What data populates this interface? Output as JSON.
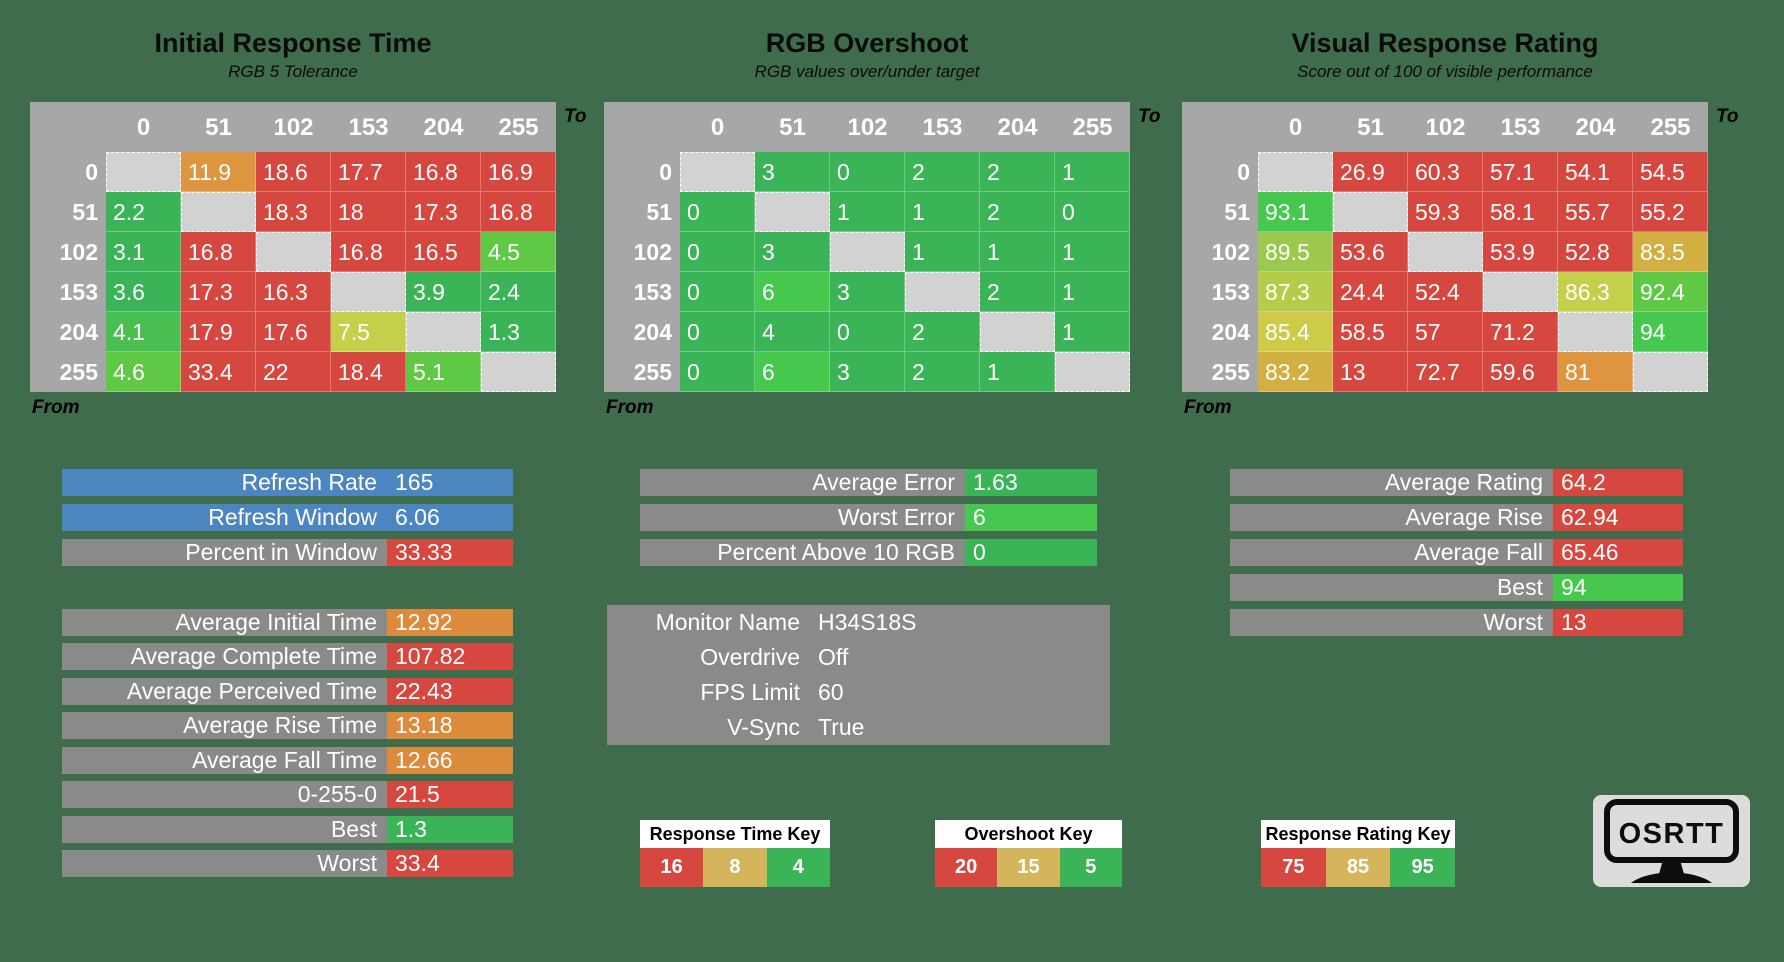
{
  "labels": {
    "from": "From",
    "to": "To"
  },
  "colors": {
    "bg": "#3f6c4c",
    "red": "#d5473f",
    "g1": "#3bb457",
    "g2": "#46c84e",
    "g3": "#5fc946",
    "g4": "#49bf51",
    "y1": "#9cc84d",
    "y2": "#b5cc4b",
    "y3": "#c4cf4a",
    "y4": "#cecb48",
    "gold": "#d1af41",
    "goldKey": "#d4b55c",
    "o1": "#de953f",
    "o2": "#dc8a3c",
    "blue": "#4c86c1",
    "grayLabel": "#8a8a8a",
    "grayHeader": "#a7a7a7",
    "diag": "#d2d2d2"
  },
  "tables": [
    {
      "title": "Initial Response Time",
      "subtitle": "RGB 5 Tolerance",
      "columns": [
        "0",
        "51",
        "102",
        "153",
        "204",
        "255"
      ],
      "rows": [
        {
          "header": "0",
          "cells": [
            {
              "v": "",
              "k": "diag"
            },
            {
              "v": "11.9",
              "k": "o1"
            },
            {
              "v": "18.6",
              "k": "red"
            },
            {
              "v": "17.7",
              "k": "red"
            },
            {
              "v": "16.8",
              "k": "red"
            },
            {
              "v": "16.9",
              "k": "red"
            }
          ]
        },
        {
          "header": "51",
          "cells": [
            {
              "v": "2.2",
              "k": "g1"
            },
            {
              "v": "",
              "k": "diag"
            },
            {
              "v": "18.3",
              "k": "red"
            },
            {
              "v": "18",
              "k": "red"
            },
            {
              "v": "17.3",
              "k": "red"
            },
            {
              "v": "16.8",
              "k": "red"
            }
          ]
        },
        {
          "header": "102",
          "cells": [
            {
              "v": "3.1",
              "k": "g1"
            },
            {
              "v": "16.8",
              "k": "red"
            },
            {
              "v": "",
              "k": "diag"
            },
            {
              "v": "16.8",
              "k": "red"
            },
            {
              "v": "16.5",
              "k": "red"
            },
            {
              "v": "4.5",
              "k": "g3"
            }
          ]
        },
        {
          "header": "153",
          "cells": [
            {
              "v": "3.6",
              "k": "g1"
            },
            {
              "v": "17.3",
              "k": "red"
            },
            {
              "v": "16.3",
              "k": "red"
            },
            {
              "v": "",
              "k": "diag"
            },
            {
              "v": "3.9",
              "k": "g1"
            },
            {
              "v": "2.4",
              "k": "g1"
            }
          ]
        },
        {
          "header": "204",
          "cells": [
            {
              "v": "4.1",
              "k": "g4"
            },
            {
              "v": "17.9",
              "k": "red"
            },
            {
              "v": "17.6",
              "k": "red"
            },
            {
              "v": "7.5",
              "k": "y3"
            },
            {
              "v": "",
              "k": "diag"
            },
            {
              "v": "1.3",
              "k": "g1"
            }
          ]
        },
        {
          "header": "255",
          "cells": [
            {
              "v": "4.6",
              "k": "g3"
            },
            {
              "v": "33.4",
              "k": "red"
            },
            {
              "v": "22",
              "k": "red"
            },
            {
              "v": "18.4",
              "k": "red"
            },
            {
              "v": "5.1",
              "k": "g3"
            },
            {
              "v": "",
              "k": "diag"
            }
          ]
        }
      ]
    },
    {
      "title": "RGB Overshoot",
      "subtitle": "RGB values over/under target",
      "columns": [
        "0",
        "51",
        "102",
        "153",
        "204",
        "255"
      ],
      "rows": [
        {
          "header": "0",
          "cells": [
            {
              "v": "",
              "k": "diag"
            },
            {
              "v": "3",
              "k": "g1"
            },
            {
              "v": "0",
              "k": "g1"
            },
            {
              "v": "2",
              "k": "g1"
            },
            {
              "v": "2",
              "k": "g1"
            },
            {
              "v": "1",
              "k": "g1"
            }
          ]
        },
        {
          "header": "51",
          "cells": [
            {
              "v": "0",
              "k": "g1"
            },
            {
              "v": "",
              "k": "diag"
            },
            {
              "v": "1",
              "k": "g1"
            },
            {
              "v": "1",
              "k": "g1"
            },
            {
              "v": "2",
              "k": "g1"
            },
            {
              "v": "0",
              "k": "g1"
            }
          ]
        },
        {
          "header": "102",
          "cells": [
            {
              "v": "0",
              "k": "g1"
            },
            {
              "v": "3",
              "k": "g1"
            },
            {
              "v": "",
              "k": "diag"
            },
            {
              "v": "1",
              "k": "g1"
            },
            {
              "v": "1",
              "k": "g1"
            },
            {
              "v": "1",
              "k": "g1"
            }
          ]
        },
        {
          "header": "153",
          "cells": [
            {
              "v": "0",
              "k": "g1"
            },
            {
              "v": "6",
              "k": "g2"
            },
            {
              "v": "3",
              "k": "g1"
            },
            {
              "v": "",
              "k": "diag"
            },
            {
              "v": "2",
              "k": "g1"
            },
            {
              "v": "1",
              "k": "g1"
            }
          ]
        },
        {
          "header": "204",
          "cells": [
            {
              "v": "0",
              "k": "g1"
            },
            {
              "v": "4",
              "k": "g1"
            },
            {
              "v": "0",
              "k": "g1"
            },
            {
              "v": "2",
              "k": "g1"
            },
            {
              "v": "",
              "k": "diag"
            },
            {
              "v": "1",
              "k": "g1"
            }
          ]
        },
        {
          "header": "255",
          "cells": [
            {
              "v": "0",
              "k": "g1"
            },
            {
              "v": "6",
              "k": "g2"
            },
            {
              "v": "3",
              "k": "g1"
            },
            {
              "v": "2",
              "k": "g1"
            },
            {
              "v": "1",
              "k": "g1"
            },
            {
              "v": "",
              "k": "diag"
            }
          ]
        }
      ]
    },
    {
      "title": "Visual Response Rating",
      "subtitle": "Score out of 100 of visible performance",
      "columns": [
        "0",
        "51",
        "102",
        "153",
        "204",
        "255"
      ],
      "rows": [
        {
          "header": "0",
          "cells": [
            {
              "v": "",
              "k": "diag"
            },
            {
              "v": "26.9",
              "k": "red"
            },
            {
              "v": "60.3",
              "k": "red"
            },
            {
              "v": "57.1",
              "k": "red"
            },
            {
              "v": "54.1",
              "k": "red"
            },
            {
              "v": "54.5",
              "k": "red"
            }
          ]
        },
        {
          "header": "51",
          "cells": [
            {
              "v": "93.1",
              "k": "g2"
            },
            {
              "v": "",
              "k": "diag"
            },
            {
              "v": "59.3",
              "k": "red"
            },
            {
              "v": "58.1",
              "k": "red"
            },
            {
              "v": "55.7",
              "k": "red"
            },
            {
              "v": "55.2",
              "k": "red"
            }
          ]
        },
        {
          "header": "102",
          "cells": [
            {
              "v": "89.5",
              "k": "y1"
            },
            {
              "v": "53.6",
              "k": "red"
            },
            {
              "v": "",
              "k": "diag"
            },
            {
              "v": "53.9",
              "k": "red"
            },
            {
              "v": "52.8",
              "k": "red"
            },
            {
              "v": "83.5",
              "k": "gold"
            }
          ]
        },
        {
          "header": "153",
          "cells": [
            {
              "v": "87.3",
              "k": "y2"
            },
            {
              "v": "24.4",
              "k": "red"
            },
            {
              "v": "52.4",
              "k": "red"
            },
            {
              "v": "",
              "k": "diag"
            },
            {
              "v": "86.3",
              "k": "y3"
            },
            {
              "v": "92.4",
              "k": "g3"
            }
          ]
        },
        {
          "header": "204",
          "cells": [
            {
              "v": "85.4",
              "k": "y4"
            },
            {
              "v": "58.5",
              "k": "red"
            },
            {
              "v": "57",
              "k": "red"
            },
            {
              "v": "71.2",
              "k": "red"
            },
            {
              "v": "",
              "k": "diag"
            },
            {
              "v": "94",
              "k": "g2"
            }
          ]
        },
        {
          "header": "255",
          "cells": [
            {
              "v": "83.2",
              "k": "gold"
            },
            {
              "v": "13",
              "k": "red"
            },
            {
              "v": "72.7",
              "k": "red"
            },
            {
              "v": "59.6",
              "k": "red"
            },
            {
              "v": "81",
              "k": "o1"
            },
            {
              "v": "",
              "k": "diag"
            }
          ]
        }
      ]
    }
  ],
  "panels": {
    "refresh": {
      "rows": [
        {
          "label": "Refresh Rate",
          "value": "165",
          "k": "blue"
        },
        {
          "label": "Refresh Window",
          "value": "6.06",
          "k": "blue"
        },
        {
          "label": "Percent in Window",
          "value": "33.33",
          "k": "red"
        }
      ]
    },
    "times": {
      "rows": [
        {
          "label": "Average Initial Time",
          "value": "12.92",
          "k": "o2"
        },
        {
          "label": "Average Complete Time",
          "value": "107.82",
          "k": "red"
        },
        {
          "label": "Average Perceived Time",
          "value": "22.43",
          "k": "red"
        },
        {
          "label": "Average Rise Time",
          "value": "13.18",
          "k": "o2"
        },
        {
          "label": "Average Fall Time",
          "value": "12.66",
          "k": "o2"
        },
        {
          "label": "0-255-0",
          "value": "21.5",
          "k": "red"
        },
        {
          "label": "Best",
          "value": "1.3",
          "k": "g1"
        },
        {
          "label": "Worst",
          "value": "33.4",
          "k": "red"
        }
      ]
    },
    "error": {
      "rows": [
        {
          "label": "Average Error",
          "value": "1.63",
          "k": "g1"
        },
        {
          "label": "Worst Error",
          "value": "6",
          "k": "g2"
        },
        {
          "label": "Percent Above 10 RGB",
          "value": "0",
          "k": "g1"
        }
      ]
    },
    "monitor": {
      "rows": [
        {
          "label": "Monitor Name",
          "value": "H34S18S",
          "k": "plain"
        },
        {
          "label": "Overdrive",
          "value": "Off",
          "k": "plain"
        },
        {
          "label": "FPS Limit",
          "value": "60",
          "k": "plain"
        },
        {
          "label": "V-Sync",
          "value": "True",
          "k": "plain"
        }
      ]
    },
    "rating": {
      "rows": [
        {
          "label": "Average Rating",
          "value": "64.2",
          "k": "red"
        },
        {
          "label": "Average Rise",
          "value": "62.94",
          "k": "red"
        },
        {
          "label": "Average Fall",
          "value": "65.46",
          "k": "red"
        },
        {
          "label": "Best",
          "value": "94",
          "k": "g2"
        },
        {
          "label": "Worst",
          "value": "13",
          "k": "red"
        }
      ]
    }
  },
  "keys": [
    {
      "title": "Response Time Key",
      "cells": [
        {
          "v": "16",
          "k": "red"
        },
        {
          "v": "8",
          "k": "goldKey"
        },
        {
          "v": "4",
          "k": "g1"
        }
      ]
    },
    {
      "title": "Overshoot Key",
      "cells": [
        {
          "v": "20",
          "k": "red"
        },
        {
          "v": "15",
          "k": "goldKey"
        },
        {
          "v": "5",
          "k": "g1"
        }
      ]
    },
    {
      "title": "Response Rating Key",
      "cells": [
        {
          "v": "75",
          "k": "red"
        },
        {
          "v": "85",
          "k": "goldKey"
        },
        {
          "v": "95",
          "k": "g1"
        }
      ]
    }
  ],
  "logo": {
    "text": "OSRTT"
  },
  "chart_data": [
    {
      "type": "heatmap",
      "title": "Initial Response Time",
      "subtitle": "RGB 5 Tolerance",
      "xlabel": "To",
      "ylabel": "From",
      "x": [
        0,
        51,
        102,
        153,
        204,
        255
      ],
      "y": [
        0,
        51,
        102,
        153,
        204,
        255
      ],
      "values": [
        [
          null,
          11.9,
          18.6,
          17.7,
          16.8,
          16.9
        ],
        [
          2.2,
          null,
          18.3,
          18,
          17.3,
          16.8
        ],
        [
          3.1,
          16.8,
          null,
          16.8,
          16.5,
          4.5
        ],
        [
          3.6,
          17.3,
          16.3,
          null,
          3.9,
          2.4
        ],
        [
          4.1,
          17.9,
          17.6,
          7.5,
          null,
          1.3
        ],
        [
          4.6,
          33.4,
          22,
          18.4,
          5.1,
          null
        ]
      ],
      "color_key_thresholds": [
        16,
        8,
        4
      ]
    },
    {
      "type": "heatmap",
      "title": "RGB Overshoot",
      "subtitle": "RGB values over/under target",
      "xlabel": "To",
      "ylabel": "From",
      "x": [
        0,
        51,
        102,
        153,
        204,
        255
      ],
      "y": [
        0,
        51,
        102,
        153,
        204,
        255
      ],
      "values": [
        [
          null,
          3,
          0,
          2,
          2,
          1
        ],
        [
          0,
          null,
          1,
          1,
          2,
          0
        ],
        [
          0,
          3,
          null,
          1,
          1,
          1
        ],
        [
          0,
          6,
          3,
          null,
          2,
          1
        ],
        [
          0,
          4,
          0,
          2,
          null,
          1
        ],
        [
          0,
          6,
          3,
          2,
          1,
          null
        ]
      ],
      "color_key_thresholds": [
        20,
        15,
        5
      ]
    },
    {
      "type": "heatmap",
      "title": "Visual Response Rating",
      "subtitle": "Score out of 100 of visible performance",
      "xlabel": "To",
      "ylabel": "From",
      "x": [
        0,
        51,
        102,
        153,
        204,
        255
      ],
      "y": [
        0,
        51,
        102,
        153,
        204,
        255
      ],
      "values": [
        [
          null,
          26.9,
          60.3,
          57.1,
          54.1,
          54.5
        ],
        [
          93.1,
          null,
          59.3,
          58.1,
          55.7,
          55.2
        ],
        [
          89.5,
          53.6,
          null,
          53.9,
          52.8,
          83.5
        ],
        [
          87.3,
          24.4,
          52.4,
          null,
          86.3,
          92.4
        ],
        [
          85.4,
          58.5,
          57,
          71.2,
          null,
          94
        ],
        [
          83.2,
          13,
          72.7,
          59.6,
          81,
          null
        ]
      ],
      "color_key_thresholds": [
        75,
        85,
        95
      ]
    },
    {
      "type": "table",
      "title": "Summary Stats",
      "rows": [
        [
          "Refresh Rate",
          165
        ],
        [
          "Refresh Window",
          6.06
        ],
        [
          "Percent in Window",
          33.33
        ],
        [
          "Average Initial Time",
          12.92
        ],
        [
          "Average Complete Time",
          107.82
        ],
        [
          "Average Perceived Time",
          22.43
        ],
        [
          "Average Rise Time",
          13.18
        ],
        [
          "Average Fall Time",
          12.66
        ],
        [
          "0-255-0",
          21.5
        ],
        [
          "Best",
          1.3
        ],
        [
          "Worst",
          33.4
        ],
        [
          "Average Error",
          1.63
        ],
        [
          "Worst Error",
          6
        ],
        [
          "Percent Above 10 RGB",
          0
        ],
        [
          "Monitor Name",
          "H34S18S"
        ],
        [
          "Overdrive",
          "Off"
        ],
        [
          "FPS Limit",
          60
        ],
        [
          "V-Sync",
          "True"
        ],
        [
          "Average Rating",
          64.2
        ],
        [
          "Average Rise",
          62.94
        ],
        [
          "Average Fall",
          65.46
        ],
        [
          "Best",
          94
        ],
        [
          "Worst",
          13
        ]
      ]
    }
  ]
}
